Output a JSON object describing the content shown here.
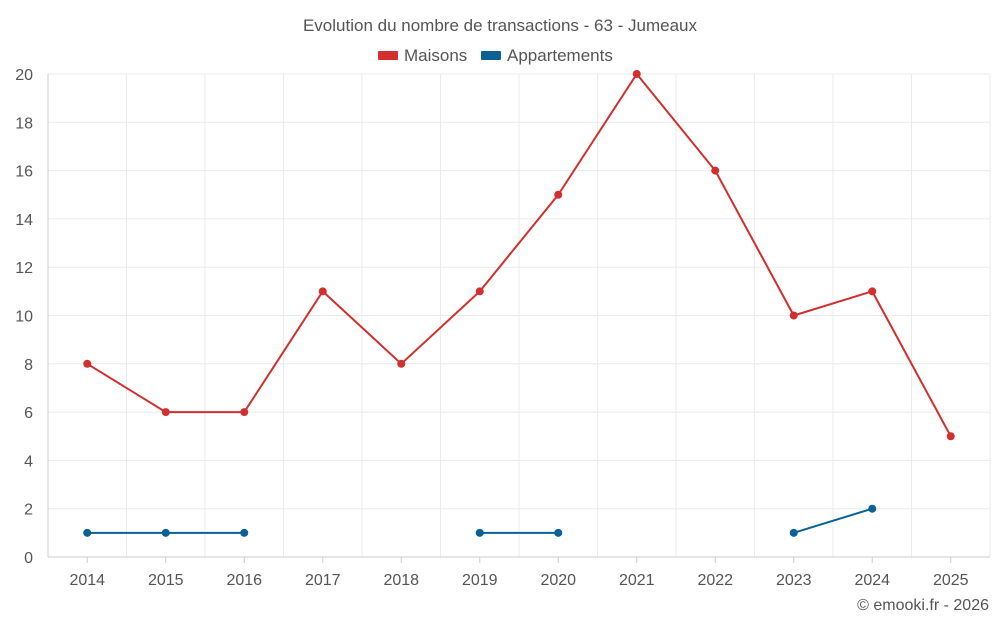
{
  "colors": {
    "maisons": "#d32f2f",
    "appartements": "#0a6196"
  },
  "chart_data": {
    "type": "line",
    "title": "Evolution du nombre de transactions - 63 - Jumeaux",
    "categories": [
      "2014",
      "2015",
      "2016",
      "2017",
      "2018",
      "2019",
      "2020",
      "2021",
      "2022",
      "2023",
      "2024",
      "2025"
    ],
    "series": [
      {
        "name": "Maisons",
        "key": "maisons",
        "values": [
          8,
          6,
          6,
          11,
          8,
          11,
          15,
          20,
          16,
          10,
          11,
          5
        ]
      },
      {
        "name": "Appartements",
        "key": "appartements",
        "values": [
          1,
          1,
          1,
          null,
          null,
          1,
          1,
          null,
          null,
          1,
          2,
          null
        ]
      }
    ],
    "ylim": [
      0,
      20
    ],
    "yticks": [
      0,
      2,
      4,
      6,
      8,
      10,
      12,
      14,
      16,
      18,
      20
    ],
    "xlabel": "",
    "ylabel": "",
    "grid": true,
    "legend": "top-center"
  },
  "credit": "© emooki.fr - 2026"
}
